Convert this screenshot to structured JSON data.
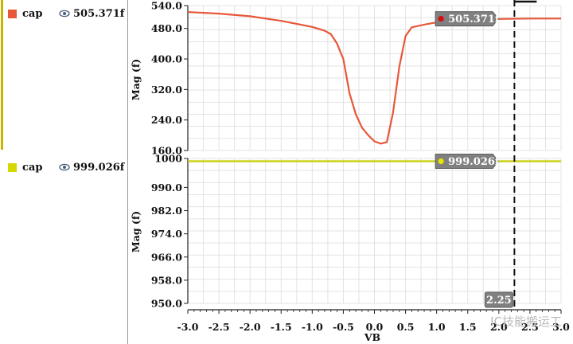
{
  "legend": {
    "items": [
      {
        "name": "cap",
        "value": "505.371f",
        "color": "#e8573a"
      },
      {
        "name": "cap",
        "value": "999.026f",
        "color": "#d6d600"
      }
    ]
  },
  "watermark": "IC技能搬运工",
  "cursor": {
    "x": 2.25,
    "label": "2.25"
  },
  "chart_data": [
    {
      "type": "line",
      "ylabel": "Mag (f)",
      "ylim": [
        160,
        540
      ],
      "yticks": [
        "540.0",
        "480.0",
        "400.0",
        "320.0",
        "240.0",
        "160.0"
      ],
      "yticks_values": [
        540,
        480,
        400,
        320,
        240,
        160
      ],
      "series": [
        {
          "name": "cap",
          "color": "#e8573a",
          "x": [
            -3.0,
            -2.5,
            -2.0,
            -1.5,
            -1.0,
            -0.8,
            -0.7,
            -0.6,
            -0.5,
            -0.4,
            -0.3,
            -0.2,
            -0.1,
            0.0,
            0.1,
            0.2,
            0.3,
            0.4,
            0.5,
            0.6,
            0.8,
            1.0,
            1.5,
            2.0,
            2.5,
            3.0
          ],
          "y": [
            523,
            519,
            512,
            500,
            484,
            474,
            465,
            440,
            400,
            310,
            255,
            220,
            200,
            184,
            178,
            182,
            260,
            380,
            460,
            483,
            490,
            496,
            502,
            505,
            506,
            506
          ]
        }
      ],
      "marker": {
        "x": 1.07,
        "y": 505.371,
        "label": "505.371f"
      }
    },
    {
      "type": "line",
      "ylabel": "Mag (f)",
      "ylim": [
        950,
        1000
      ],
      "yticks": [
        "1000",
        "990.0",
        "982.0",
        "974.0",
        "966.0",
        "958.0",
        "950.0"
      ],
      "yticks_values": [
        1000,
        990,
        982,
        974,
        966,
        958,
        950
      ],
      "series": [
        {
          "name": "cap",
          "color": "#c8cc00",
          "x": [
            -3.0,
            3.0
          ],
          "y": [
            999.026,
            999.026
          ]
        }
      ],
      "marker": {
        "x": 1.07,
        "y": 999.026,
        "label": "999.026f"
      }
    }
  ],
  "xaxis": {
    "label": "VB",
    "xlim": [
      -3.0,
      3.0
    ],
    "ticks": [
      -3.0,
      -2.5,
      -2.0,
      -1.5,
      -1.0,
      -0.5,
      0.0,
      0.5,
      1.0,
      1.5,
      2.0,
      2.5,
      3.0
    ],
    "tick_labels": [
      "-3.0",
      "-2.5",
      "-2.0",
      "-1.5",
      "-1.0",
      "-0.5",
      "0.0",
      "0.5",
      "1.0",
      "1.5",
      "2.0",
      "2.5",
      "3.0"
    ]
  }
}
